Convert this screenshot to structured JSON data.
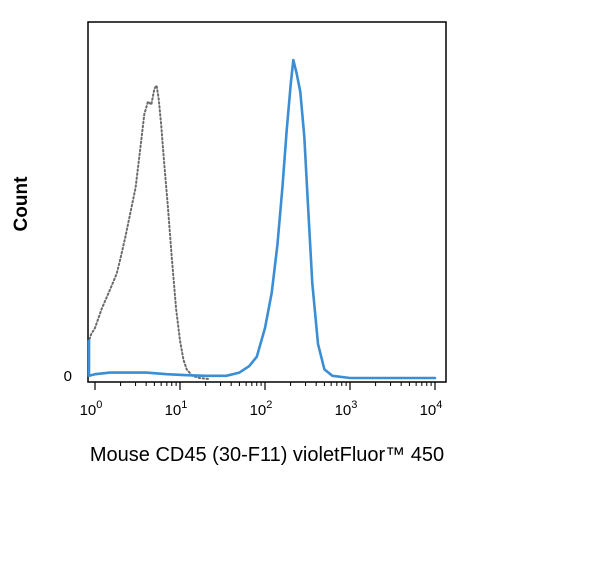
{
  "chart_data": {
    "type": "line",
    "title": "",
    "xlabel": "Mouse CD45 (30-F11) violetFluor™ 450",
    "ylabel": "Count",
    "x_scale": "log",
    "xlim": [
      0,
      10000
    ],
    "ylim": [
      0,
      100
    ],
    "y_ticks": [
      {
        "value": 0,
        "label": "0"
      }
    ],
    "x_ticks": [
      {
        "value": 1,
        "base": "10",
        "exp": "0"
      },
      {
        "value": 10,
        "base": "10",
        "exp": "1"
      },
      {
        "value": 100,
        "base": "10",
        "exp": "2"
      },
      {
        "value": 1000,
        "base": "10",
        "exp": "3"
      },
      {
        "value": 10000,
        "base": "10",
        "exp": "4"
      }
    ],
    "grid": false,
    "legend": "none",
    "series": [
      {
        "style": "dotted",
        "color": "#6b6b6b",
        "x": [
          0.62,
          0.7,
          0.8,
          0.9,
          1.0,
          1.2,
          1.5,
          1.8,
          2.0,
          2.3,
          2.6,
          3.0,
          3.4,
          3.8,
          4.2,
          4.6,
          5.0,
          5.3,
          5.6,
          6.0,
          6.5,
          7.2,
          8.0,
          9.0,
          10.0,
          11.0,
          12.0,
          14.0,
          17.0,
          22.0
        ],
        "y": [
          10,
          11,
          12,
          14,
          16,
          22,
          28,
          33,
          38,
          45,
          52,
          60,
          72,
          83,
          87,
          86,
          91,
          92,
          88,
          80,
          68,
          54,
          38,
          22,
          12,
          6,
          3,
          1,
          0.3,
          0
        ]
      },
      {
        "style": "solid",
        "color": "#3b8ed3",
        "x": [
          0.62,
          0.7,
          0.8,
          1.0,
          1.5,
          2.5,
          4.0,
          7.0,
          12.0,
          20.0,
          35.0,
          50.0,
          65.0,
          80.0,
          100.0,
          120.0,
          140.0,
          160.0,
          180.0,
          200.0,
          215.0,
          235.0,
          260.0,
          290.0,
          320.0,
          360.0,
          420.0,
          500.0,
          620.0,
          1000.0,
          3000.0,
          10000.0
        ],
        "y": [
          12,
          3,
          1,
          1.5,
          2,
          2,
          2,
          1.5,
          1.2,
          1,
          1,
          2,
          4,
          7,
          16,
          27,
          42,
          60,
          78,
          92,
          100,
          96,
          90,
          76,
          55,
          30,
          11,
          3,
          1,
          0.3,
          0.3,
          0.3
        ]
      }
    ]
  }
}
